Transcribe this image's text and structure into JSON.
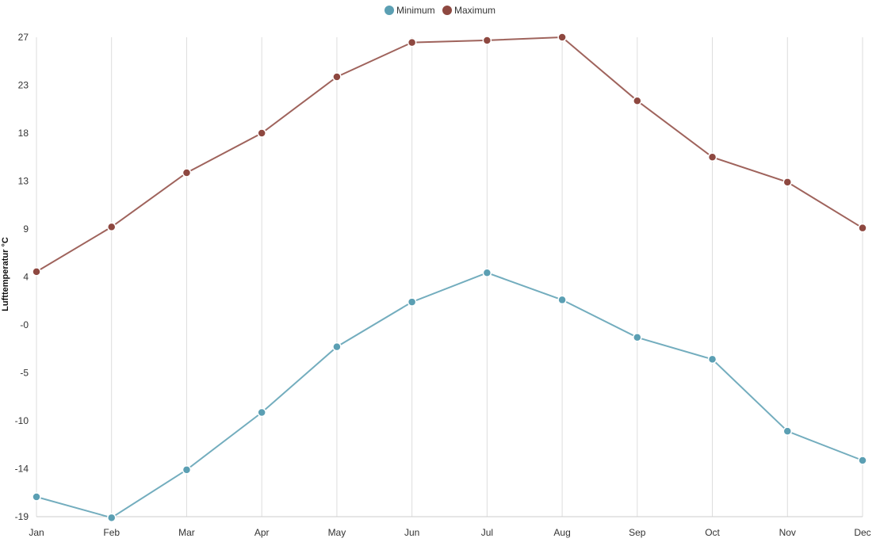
{
  "chart_data": {
    "type": "line",
    "title": "",
    "xlabel": "",
    "ylabel": "Lufttemperatur °C",
    "categories": [
      "Jan",
      "Feb",
      "Mar",
      "Apr",
      "May",
      "Jun",
      "Jul",
      "Aug",
      "Sep",
      "Oct",
      "Nov",
      "Dec"
    ],
    "y_ticks": [
      "27",
      "23",
      "18",
      "13",
      "9",
      "4",
      "-0",
      "-5",
      "-10",
      "-14",
      "-19"
    ],
    "ylim": [
      -19,
      27
    ],
    "grid": "vertical",
    "legend_position": "top-center",
    "series": [
      {
        "name": "Minimum",
        "color": "#5b9fb3",
        "values": [
          -17.1,
          -19.1,
          -14.5,
          -9.0,
          -2.7,
          1.6,
          4.4,
          1.8,
          -1.8,
          -3.9,
          -10.8,
          -13.6
        ]
      },
      {
        "name": "Maximum",
        "color": "#8e4840",
        "values": [
          4.5,
          8.8,
          14.0,
          17.8,
          23.2,
          26.5,
          26.7,
          27.0,
          20.9,
          15.5,
          13.1,
          8.7
        ]
      }
    ]
  }
}
